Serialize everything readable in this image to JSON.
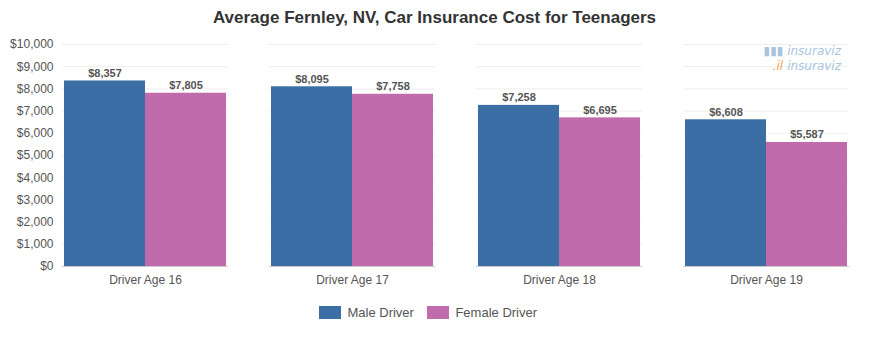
{
  "chart_data": {
    "type": "bar",
    "title": "Average Fernley, NV, Car Insurance Cost for Teenagers",
    "categories": [
      "Driver Age 16",
      "Driver Age 17",
      "Driver Age 18",
      "Driver Age 19"
    ],
    "series": [
      {
        "name": "Male Driver",
        "color": "#3a6ea5",
        "values": [
          8357,
          8095,
          7258,
          6608
        ],
        "value_labels": [
          "$8,357",
          "$8,095",
          "$7,258",
          "$6,608"
        ]
      },
      {
        "name": "Female Driver",
        "color": "#c06bab",
        "values": [
          7805,
          7758,
          6695,
          5587
        ],
        "value_labels": [
          "$7,805",
          "$7,758",
          "$6,695",
          "$5,587"
        ]
      }
    ],
    "ylim": [
      0,
      10000
    ],
    "yticks": [
      {
        "value": 0,
        "label": "$0"
      },
      {
        "value": 1000,
        "label": "$1,000"
      },
      {
        "value": 2000,
        "label": "$2,000"
      },
      {
        "value": 3000,
        "label": "$3,000"
      },
      {
        "value": 4000,
        "label": "$4,000"
      },
      {
        "value": 5000,
        "label": "$5,000"
      },
      {
        "value": 6000,
        "label": "$6,000"
      },
      {
        "value": 7000,
        "label": "$7,000"
      },
      {
        "value": 8000,
        "label": "$8,000"
      },
      {
        "value": 9000,
        "label": "$9,000"
      },
      {
        "value": 10000,
        "label": "$10,000"
      }
    ],
    "grid": true,
    "legend": "bottom",
    "data_labels": true,
    "annotations": [
      {
        "text": "▮▮▮ insuraviz",
        "color": "#aac4e0"
      },
      {
        "text": ".il",
        "color": "#f4a460"
      },
      {
        "text": "insuraviz",
        "color": "#aac4e0"
      }
    ]
  }
}
